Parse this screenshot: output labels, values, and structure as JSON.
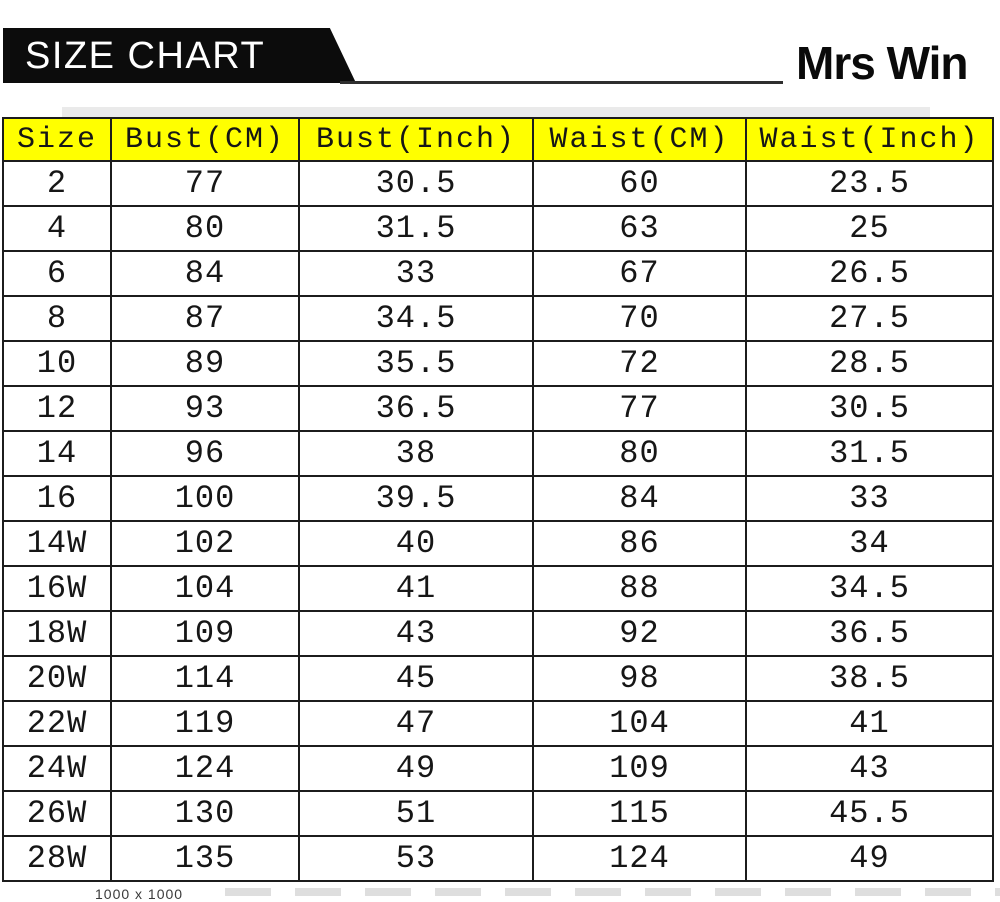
{
  "banner": {
    "title": "SIZE CHART"
  },
  "brand": {
    "name": "Mrs Win"
  },
  "size_chart": {
    "columns": [
      "Size",
      "Bust(CM)",
      "Bust(Inch)",
      "Waist(CM)",
      "Waist(Inch)"
    ],
    "rows": [
      [
        "2",
        "77",
        "30.5",
        "60",
        "23.5"
      ],
      [
        "4",
        "80",
        "31.5",
        "63",
        "25"
      ],
      [
        "6",
        "84",
        "33",
        "67",
        "26.5"
      ],
      [
        "8",
        "87",
        "34.5",
        "70",
        "27.5"
      ],
      [
        "10",
        "89",
        "35.5",
        "72",
        "28.5"
      ],
      [
        "12",
        "93",
        "36.5",
        "77",
        "30.5"
      ],
      [
        "14",
        "96",
        "38",
        "80",
        "31.5"
      ],
      [
        "16",
        "100",
        "39.5",
        "84",
        "33"
      ],
      [
        "14W",
        "102",
        "40",
        "86",
        "34"
      ],
      [
        "16W",
        "104",
        "41",
        "88",
        "34.5"
      ],
      [
        "18W",
        "109",
        "43",
        "92",
        "36.5"
      ],
      [
        "20W",
        "114",
        "45",
        "98",
        "38.5"
      ],
      [
        "22W",
        "119",
        "47",
        "104",
        "41"
      ],
      [
        "24W",
        "124",
        "49",
        "109",
        "43"
      ],
      [
        "26W",
        "130",
        "51",
        "115",
        "45.5"
      ],
      [
        "28W",
        "135",
        "53",
        "124",
        "49"
      ]
    ]
  },
  "footer": {
    "thumbnail_label": "1000 x 1000"
  },
  "colors": {
    "header_bg": "#ffff00",
    "banner_bg": "#0c0c0c",
    "table_border": "#1c1c1c"
  },
  "chart_data": {
    "type": "table",
    "title": "SIZE CHART",
    "brand": "Mrs Win",
    "columns": [
      "Size",
      "Bust(CM)",
      "Bust(Inch)",
      "Waist(CM)",
      "Waist(Inch)"
    ],
    "rows": [
      [
        "2",
        77,
        30.5,
        60,
        23.5
      ],
      [
        "4",
        80,
        31.5,
        63,
        25
      ],
      [
        "6",
        84,
        33,
        67,
        26.5
      ],
      [
        "8",
        87,
        34.5,
        70,
        27.5
      ],
      [
        "10",
        89,
        35.5,
        72,
        28.5
      ],
      [
        "12",
        93,
        36.5,
        77,
        30.5
      ],
      [
        "14",
        96,
        38,
        80,
        31.5
      ],
      [
        "16",
        100,
        39.5,
        84,
        33
      ],
      [
        "14W",
        102,
        40,
        86,
        34
      ],
      [
        "16W",
        104,
        41,
        88,
        34.5
      ],
      [
        "18W",
        109,
        43,
        92,
        36.5
      ],
      [
        "20W",
        114,
        45,
        98,
        38.5
      ],
      [
        "22W",
        119,
        47,
        104,
        41
      ],
      [
        "24W",
        124,
        49,
        109,
        43
      ],
      [
        "26W",
        130,
        51,
        115,
        45.5
      ],
      [
        "28W",
        135,
        53,
        124,
        49
      ]
    ],
    "layout": {
      "header_background": "#ffff00",
      "grid": true,
      "text_align": "center"
    }
  }
}
